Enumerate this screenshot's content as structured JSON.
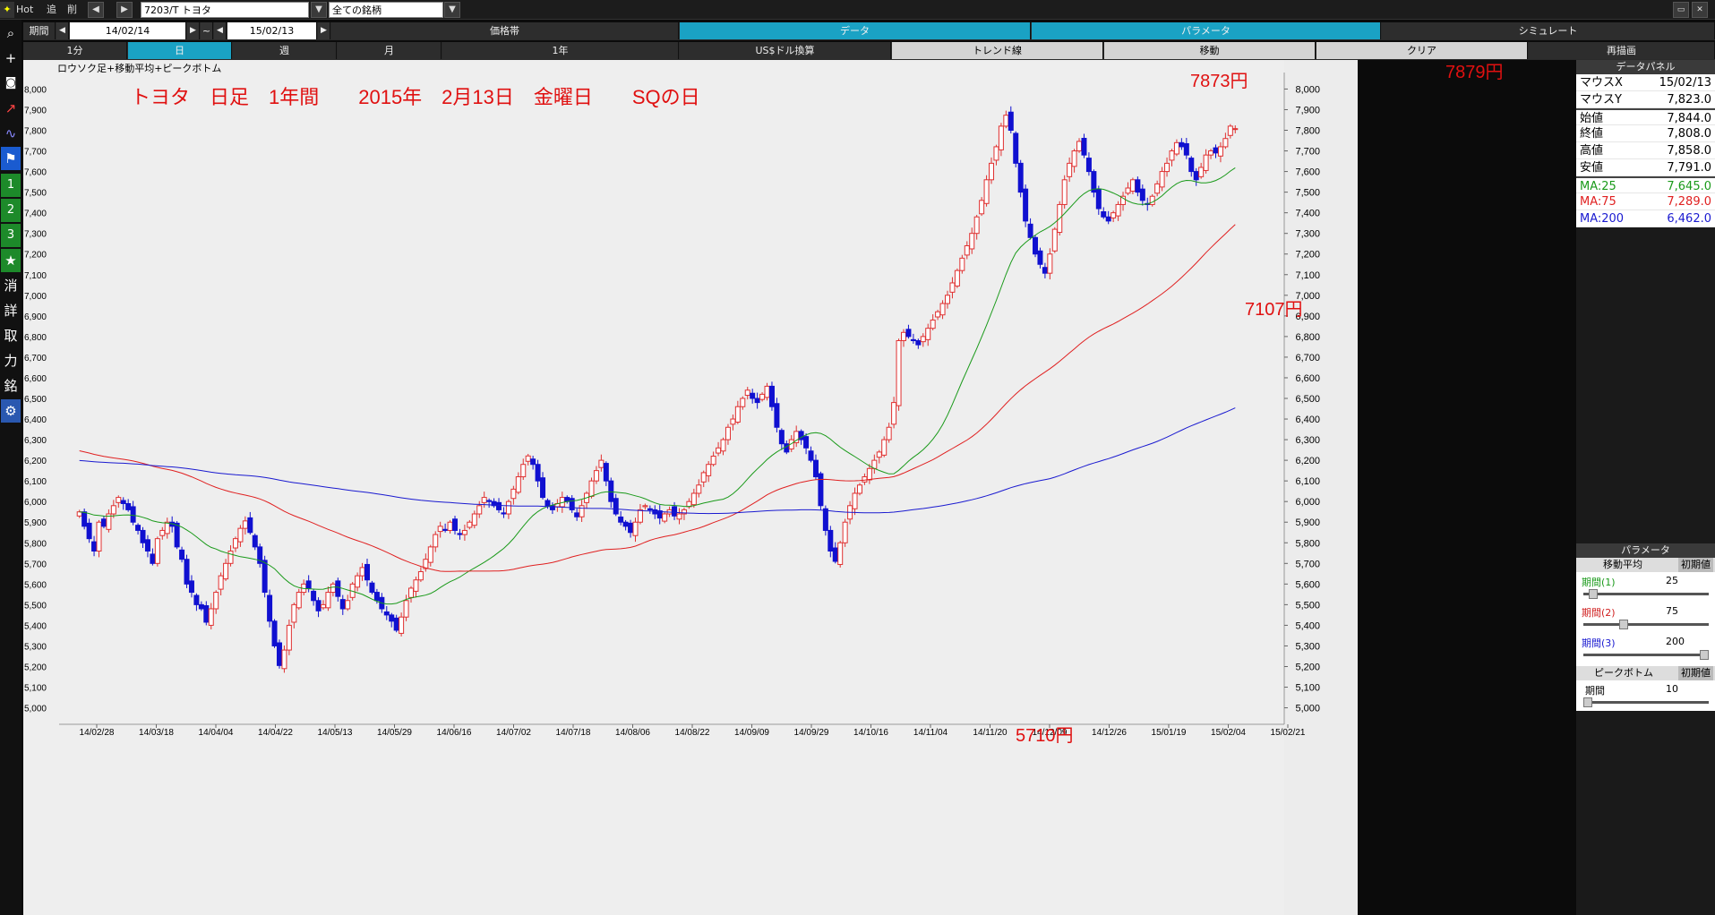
{
  "toolbar": {
    "hot": "Hot",
    "tsui": "追",
    "sakujo": "削",
    "symbol": "7203/T トヨタ",
    "universe": "全ての銘柄",
    "period_label": "期間",
    "date_from": "14/02/14",
    "tilde": "~",
    "date_to": "15/02/13"
  },
  "tabs_row1": [
    {
      "label": "価格帯"
    },
    {
      "label": "データ"
    },
    {
      "label": "パラメータ"
    },
    {
      "label": "シミュレート"
    }
  ],
  "tabs_row2": [
    {
      "label": "1分"
    },
    {
      "label": "日"
    },
    {
      "label": "週"
    },
    {
      "label": "月"
    },
    {
      "label": "1年"
    },
    {
      "label": "US$ドル換算"
    },
    {
      "label": "トレンド線"
    },
    {
      "label": "移動"
    },
    {
      "label": "クリア"
    },
    {
      "label": "再描画"
    }
  ],
  "left_tools": [
    "search-icon",
    "plus-icon",
    "camera-icon",
    "chart-icon",
    "chart2-icon",
    "flag-icon",
    "1",
    "2",
    "3",
    "★",
    "消",
    "詳",
    "取",
    "力",
    "銘",
    "gear-icon"
  ],
  "chart_header": "ロウソク足+移動平均+ピークボトム",
  "annotations": {
    "title": "トヨタ　日足　1年間　　2015年　2月13日　金曜日　　SQの日",
    "high1": "7873円",
    "high2": "7879円",
    "low1": "7107円",
    "low2": "5710円"
  },
  "colors": {
    "up": "#e03030",
    "down": "#1010d0",
    "ma25": "#1a9a1a",
    "ma75": "#e02020",
    "ma200": "#1a1ad0",
    "accent_tab": "#1aa2c4",
    "annotation": "#e01010"
  },
  "data_panel": {
    "title": "データパネル",
    "rows": [
      {
        "k": "マウスX",
        "v": "15/02/13"
      },
      {
        "k": "マウスY",
        "v": "7,823.0"
      },
      {
        "k": "始値",
        "v": "7,844.0"
      },
      {
        "k": "終値",
        "v": "7,808.0"
      },
      {
        "k": "高値",
        "v": "7,858.0"
      },
      {
        "k": "安値",
        "v": "7,791.0"
      },
      {
        "k": "MA:25",
        "v": "7,645.0"
      },
      {
        "k": "MA:75",
        "v": "7,289.0"
      },
      {
        "k": "MA:200",
        "v": "6,462.0"
      }
    ]
  },
  "params": {
    "title": "パラメータ",
    "ma_title": "移動平均",
    "reset": "初期値",
    "p1_label": "期間(1)",
    "p1_value": "25",
    "p2_label": "期間(2)",
    "p2_value": "75",
    "p3_label": "期間(3)",
    "p3_value": "200",
    "pb_title": "ピークボトム",
    "pb_reset": "初期値",
    "pb_label": "期間",
    "pb_value": "10"
  },
  "chart_data": {
    "type": "candlestick",
    "ylim": [
      4920,
      8080
    ],
    "y_ticks": [
      "8,000",
      "7,900",
      "7,800",
      "7,700",
      "7,600",
      "7,500",
      "7,400",
      "7,300",
      "7,200",
      "7,100",
      "7,000",
      "6,900",
      "6,800",
      "6,700",
      "6,600",
      "6,500",
      "6,400",
      "6,300",
      "6,200",
      "6,100",
      "6,000",
      "5,900",
      "5,800",
      "5,700",
      "5,600",
      "5,500",
      "5,400",
      "5,300",
      "5,200",
      "5,100",
      "5,000"
    ],
    "x_ticks": [
      "14/02/28",
      "14/03/18",
      "14/04/04",
      "14/04/22",
      "14/05/13",
      "14/05/29",
      "14/06/16",
      "14/07/02",
      "14/07/18",
      "14/08/06",
      "14/08/22",
      "14/09/09",
      "14/09/29",
      "14/10/16",
      "14/11/04",
      "14/11/20",
      "14/12/09",
      "14/12/26",
      "15/01/19",
      "15/02/04",
      "15/02/21"
    ],
    "closes": [
      5950,
      5880,
      5820,
      5760,
      5900,
      5880,
      5940,
      5980,
      6020,
      5990,
      5960,
      5900,
      5860,
      5800,
      5760,
      5700,
      5820,
      5860,
      5900,
      5880,
      5780,
      5720,
      5600,
      5560,
      5500,
      5480,
      5415,
      5480,
      5560,
      5640,
      5700,
      5760,
      5820,
      5870,
      5906,
      5850,
      5780,
      5700,
      5560,
      5420,
      5300,
      5205,
      5280,
      5400,
      5500,
      5560,
      5600,
      5580,
      5520,
      5470,
      5500,
      5560,
      5600,
      5540,
      5480,
      5520,
      5600,
      5640,
      5680,
      5620,
      5560,
      5520,
      5480,
      5450,
      5420,
      5376,
      5440,
      5520,
      5580,
      5620,
      5660,
      5720,
      5780,
      5840,
      5880,
      5860,
      5900,
      5860,
      5840,
      5860,
      5900,
      5940,
      5980,
      6020,
      6000,
      5980,
      5960,
      5940,
      6000,
      6060,
      6120,
      6180,
      6221,
      6180,
      6100,
      6020,
      5980,
      5960,
      5990,
      6020,
      6000,
      5960,
      5926,
      5980,
      6040,
      6100,
      6150,
      6200,
      6100,
      6000,
      5940,
      5900,
      5880,
      5850,
      5900,
      5960,
      5980,
      5960,
      5940,
      5920,
      5940,
      5960,
      5930,
      5940,
      5960,
      6000,
      6040,
      6080,
      6140,
      6180,
      6220,
      6260,
      6300,
      6360,
      6400,
      6460,
      6500,
      6540,
      6500,
      6480,
      6520,
      6559,
      6460,
      6360,
      6280,
      6240,
      6300,
      6340,
      6300,
      6260,
      6200,
      6120,
      5980,
      5860,
      5760,
      5710,
      5800,
      5900,
      5980,
      6040,
      6080,
      6120,
      6160,
      6200,
      6240,
      6300,
      6360,
      6480,
      6780,
      6820,
      6800,
      6780,
      6760,
      6800,
      6840,
      6880,
      6920,
      6960,
      7000,
      7060,
      7120,
      7180,
      7240,
      7300,
      7380,
      7460,
      7560,
      7640,
      7720,
      7820,
      7873,
      7800,
      7640,
      7500,
      7360,
      7280,
      7200,
      7150,
      7107,
      7200,
      7320,
      7440,
      7560,
      7640,
      7700,
      7746,
      7680,
      7600,
      7500,
      7420,
      7380,
      7360,
      7400,
      7440,
      7480,
      7520,
      7560,
      7500,
      7460,
      7440,
      7480,
      7540,
      7600,
      7640,
      7700,
      7740,
      7720,
      7680,
      7600,
      7560,
      7620,
      7680,
      7700,
      7690,
      7720,
      7760,
      7820,
      7808
    ]
  }
}
